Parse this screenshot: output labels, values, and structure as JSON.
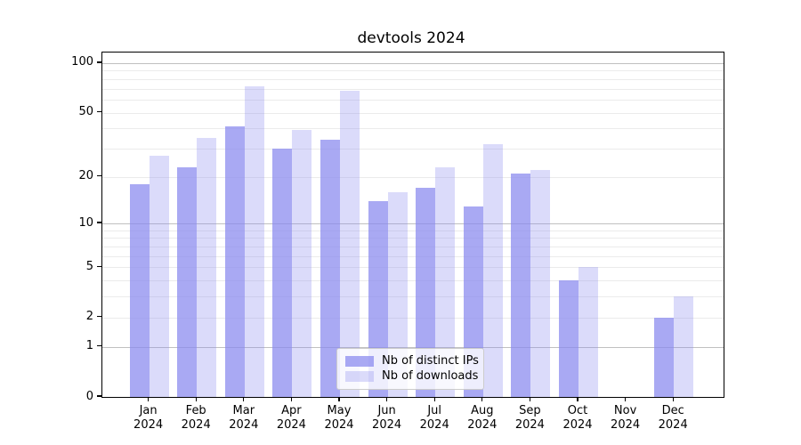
{
  "title": "devtools 2024",
  "legend": {
    "items": [
      {
        "label": "Nb of distinct IPs",
        "color": "rgba(136,136,238,0.72)"
      },
      {
        "label": "Nb of downloads",
        "color": "rgba(136,136,238,0.30)"
      }
    ],
    "position": "lower center"
  },
  "colors": {
    "series_dark": "rgba(136,136,238,0.72)",
    "series_light": "rgba(136,136,238,0.30)",
    "major_grid": "#c0c0c0",
    "minor_grid": "#ebebeb",
    "axis": "#000000"
  },
  "chart_data": {
    "type": "bar",
    "title": "devtools 2024",
    "xlabel": "",
    "ylabel": "",
    "y_scale": "log(value+1)",
    "ylim": [
      0,
      117
    ],
    "grid": "horizontal major+minor",
    "categories": [
      "Jan 2024",
      "Feb 2024",
      "Mar 2024",
      "Apr 2024",
      "May 2024",
      "Jun 2024",
      "Jul 2024",
      "Aug 2024",
      "Sep 2024",
      "Oct 2024",
      "Nov 2024",
      "Dec 2024"
    ],
    "series": [
      {
        "name": "Nb of distinct IPs",
        "values": [
          18,
          23,
          41,
          30,
          34,
          14,
          17,
          13,
          21,
          4,
          0,
          2
        ]
      },
      {
        "name": "Nb of downloads",
        "values": [
          27,
          35,
          72,
          39,
          68,
          16,
          23,
          32,
          22,
          5,
          0,
          3
        ]
      }
    ],
    "y_ticks": [
      100,
      50,
      20,
      10,
      5,
      2,
      1,
      0
    ],
    "y_major_gridlines": [
      100,
      10,
      1
    ],
    "y_minor_gridlines": [
      90,
      80,
      70,
      60,
      50,
      40,
      30,
      20,
      9,
      8,
      7,
      6,
      5,
      4,
      3,
      2
    ]
  }
}
